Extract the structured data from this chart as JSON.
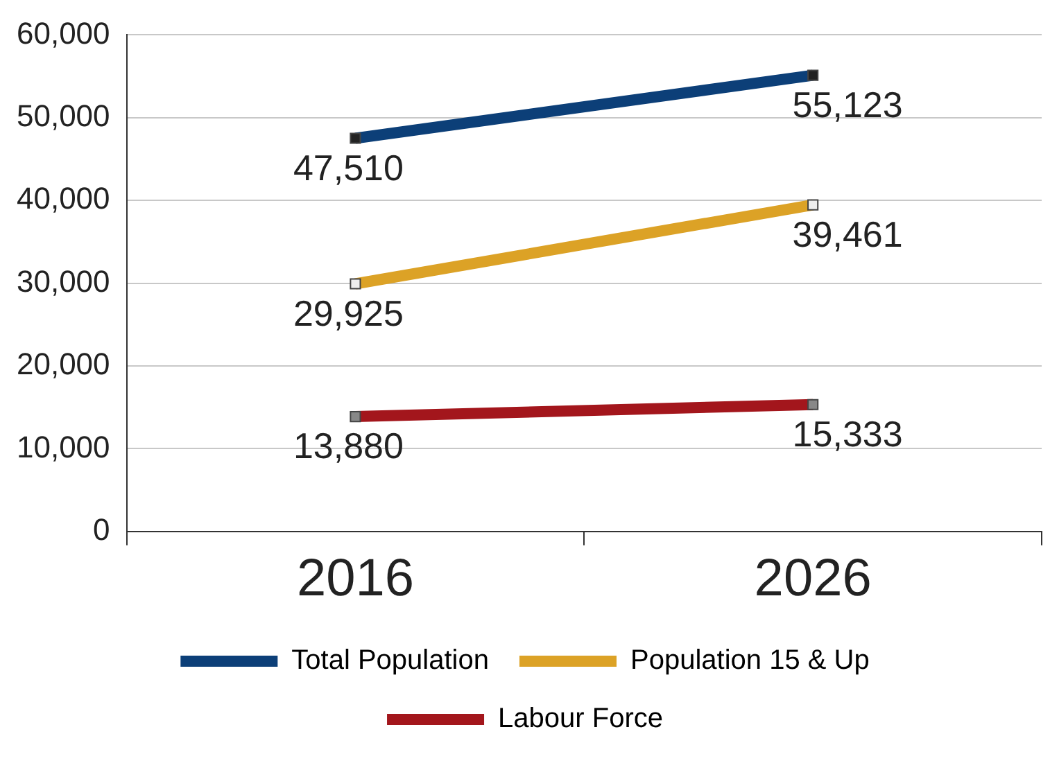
{
  "chart_data": {
    "type": "line",
    "categories": [
      "2016",
      "2026"
    ],
    "series": [
      {
        "name": "Total Population",
        "color": "#0c3f78",
        "values": [
          47510,
          55123
        ]
      },
      {
        "name": "Population 15 & Up",
        "color": "#dca226",
        "values": [
          29925,
          39461
        ]
      },
      {
        "name": "Labour Force",
        "color": "#a3161c",
        "values": [
          13880,
          15333
        ]
      }
    ],
    "ylim": [
      0,
      60000
    ],
    "yticks": [
      {
        "value": 0,
        "label": "0"
      },
      {
        "value": 10000,
        "label": "10,000"
      },
      {
        "value": 20000,
        "label": "20,000"
      },
      {
        "value": 30000,
        "label": "30,000"
      },
      {
        "value": 40000,
        "label": "40,000"
      },
      {
        "value": 50000,
        "label": "50,000"
      },
      {
        "value": 60000,
        "label": "60,000"
      }
    ],
    "grid": "y",
    "legend": "bottom",
    "marker": "square",
    "line_style": "solid",
    "value_labels": [
      [
        "47,510",
        "55,123"
      ],
      [
        "29,925",
        "39,461"
      ],
      [
        "13,880",
        "15,333"
      ]
    ]
  }
}
